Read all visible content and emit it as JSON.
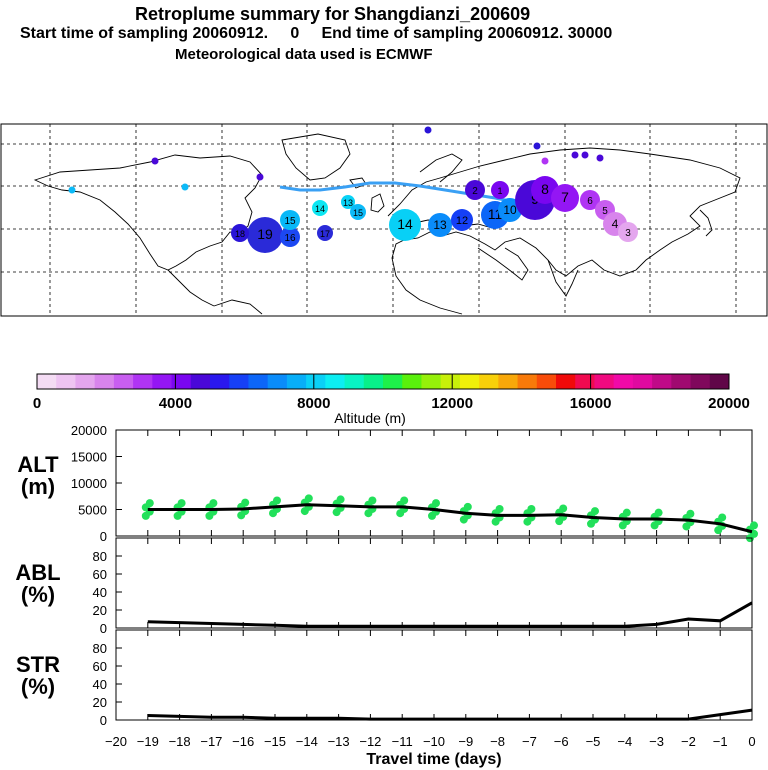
{
  "header": {
    "title": "Retroplume summary for Shangdianzi_200609",
    "sampling": "Start time of sampling 20060912.     0     End time of sampling 20060912. 30000",
    "met": "Meteorological data used is ECMWF"
  },
  "colorbar": {
    "label": "Altitude (m)",
    "ticks": [
      "0",
      "4000",
      "8000",
      "12000",
      "16000",
      "20000"
    ],
    "colors": [
      "#f4dcf4",
      "#eec4f2",
      "#e4a6ee",
      "#d884ec",
      "#c85ef0",
      "#b034f4",
      "#9416f4",
      "#7a06f0",
      "#4a08d8",
      "#2a18ee",
      "#1640f6",
      "#0c66f8",
      "#0a8cfa",
      "#08aef8",
      "#0ad0f6",
      "#0ceef2",
      "#08f4c4",
      "#08f08a",
      "#1ef04a",
      "#5af00c",
      "#96f00a",
      "#c8f00a",
      "#f0f00a",
      "#f8d00a",
      "#f8a80a",
      "#f87a0a",
      "#f84c0a",
      "#f00a0a",
      "#f00a50",
      "#f00a80",
      "#f00aa8",
      "#e00aa0",
      "#c00a88",
      "#a00a70",
      "#80085c",
      "#600648"
    ]
  },
  "map": {
    "labels": [
      "19",
      "18",
      "17",
      "16",
      "15",
      "14",
      "13",
      "12",
      "11",
      "10",
      "9",
      "8",
      "7",
      "6",
      "5",
      "4",
      "3",
      "2",
      "1"
    ]
  },
  "chart_data": [
    {
      "type": "line",
      "name": "ALT",
      "ylabel": "ALT\n(m)",
      "xlabel": "Travel time (days)",
      "ylim": [
        0,
        20000
      ],
      "yticks": [
        "0",
        "5000",
        "10000",
        "15000",
        "20000"
      ],
      "x": [
        -19,
        -18,
        -17,
        -16,
        -15,
        -14,
        -13,
        -12,
        -11,
        -10,
        -9,
        -8,
        -7,
        -6,
        -5,
        -4,
        -3,
        -2,
        -1,
        0
      ],
      "series": [
        {
          "name": "mean altitude",
          "values": [
            5000,
            5000,
            5000,
            5100,
            5500,
            5900,
            5700,
            5500,
            5500,
            5000,
            4300,
            3900,
            3900,
            4000,
            3500,
            3200,
            3200,
            3000,
            2300,
            800
          ]
        }
      ],
      "scatter_color": "#22e05a"
    },
    {
      "type": "line",
      "name": "ABL",
      "ylabel": "ABL\n(%)",
      "ylim": [
        0,
        100
      ],
      "yticks": [
        "0",
        "20",
        "40",
        "60",
        "80"
      ],
      "x": [
        -19,
        -18,
        -17,
        -16,
        -15,
        -14,
        -13,
        -12,
        -11,
        -10,
        -9,
        -8,
        -7,
        -6,
        -5,
        -4,
        -3,
        -2,
        -1,
        0
      ],
      "series": [
        {
          "name": "ABL fraction",
          "values": [
            7,
            6,
            5,
            4,
            3,
            2,
            2,
            2,
            2,
            2,
            2,
            2,
            2,
            2,
            2,
            2,
            4,
            10,
            8,
            28
          ]
        }
      ]
    },
    {
      "type": "line",
      "name": "STR",
      "ylabel": "STR\n(%)",
      "xlabel": "Travel time (days)",
      "ylim": [
        0,
        100
      ],
      "yticks": [
        "0",
        "20",
        "40",
        "60",
        "80"
      ],
      "xticks": [
        "−20",
        "−19",
        "−18",
        "−17",
        "−16",
        "−15",
        "−14",
        "−13",
        "−12",
        "−11",
        "−10",
        "−9",
        "−8",
        "−7",
        "−6",
        "−5",
        "−4",
        "−3",
        "−2",
        "−1",
        "0"
      ],
      "x": [
        -19,
        -18,
        -17,
        -16,
        -15,
        -14,
        -13,
        -12,
        -11,
        -10,
        -9,
        -8,
        -7,
        -6,
        -5,
        -4,
        -3,
        -2,
        -1,
        0
      ],
      "series": [
        {
          "name": "stratosphere fraction",
          "values": [
            5,
            4,
            3,
            3,
            2,
            2,
            2,
            1,
            1,
            1,
            1,
            1,
            1,
            1,
            1,
            1,
            1,
            1,
            6,
            11
          ]
        }
      ]
    }
  ]
}
